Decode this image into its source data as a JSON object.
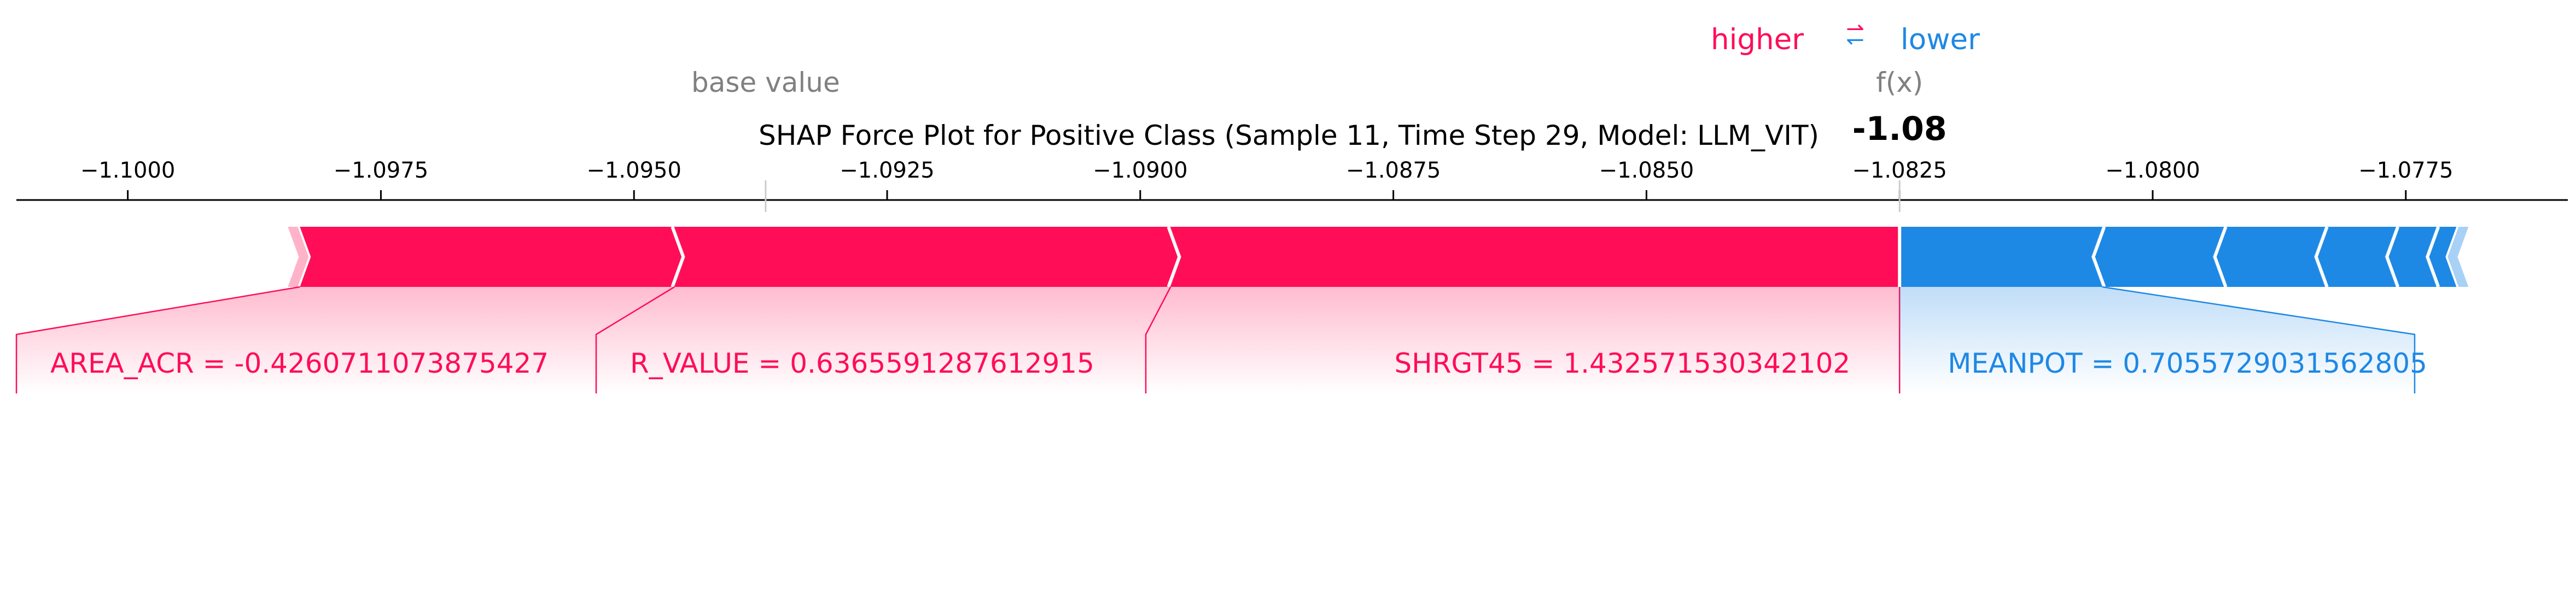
{
  "chart_data": {
    "type": "force",
    "title": "SHAP Force Plot for Positive Class (Sample 11, Time Step 29, Model: LLM_VIT)",
    "legend": {
      "higher_label": "higher",
      "lower_label": "lower",
      "arrows_symbol": "⇄"
    },
    "base_value_label": "base value",
    "base_value": -1.0937,
    "output_label": "f(x)",
    "output_value": -1.0825,
    "output_value_text": "-1.08",
    "xlim": [
      -1.1011,
      -1.0759
    ],
    "x_ticks": [
      -1.1,
      -1.0975,
      -1.095,
      -1.0925,
      -1.09,
      -1.0875,
      -1.085,
      -1.0825,
      -1.08,
      -1.0775
    ],
    "x_tick_labels": [
      "−1.1000",
      "−1.0975",
      "−1.0950",
      "−1.0925",
      "−1.0900",
      "−1.0875",
      "−1.0850",
      "−1.0825",
      "−1.0800",
      "−1.0775"
    ],
    "positive_features": [
      {
        "name": "AREA_ACR",
        "value_text": "-0.4260711073875427",
        "label": "AREA_ACR = -0.4260711073875427",
        "start": -1.0983,
        "end": -1.0946
      },
      {
        "name": "R_VALUE",
        "value_text": "0.6365591287612915",
        "label": "R_VALUE = 0.6365591287612915",
        "start": -1.0946,
        "end": -1.0897
      },
      {
        "name": "SHRGT45",
        "value_text": "1.432571530342102",
        "label": "SHRGT45 = 1.432571530342102",
        "start": -1.0897,
        "end": -1.0825
      }
    ],
    "negative_features": [
      {
        "name": "MEANPOT",
        "value_text": "0.7055729031562805",
        "label": "MEANPOT = 0.7055729031562805",
        "start": -1.0825,
        "end": -1.0805
      },
      {
        "name": "",
        "start": -1.0805,
        "end": -1.0793
      },
      {
        "name": "",
        "start": -1.0793,
        "end": -1.0783
      },
      {
        "name": "",
        "start": -1.0783,
        "end": -1.0776
      },
      {
        "name": "",
        "start": -1.0776,
        "end": -1.0772
      },
      {
        "name": "",
        "start": -1.0772,
        "end": -1.077
      }
    ],
    "colors": {
      "positive": "#ff0d57",
      "negative": "#1e88e5",
      "base_label": "#808080"
    }
  }
}
